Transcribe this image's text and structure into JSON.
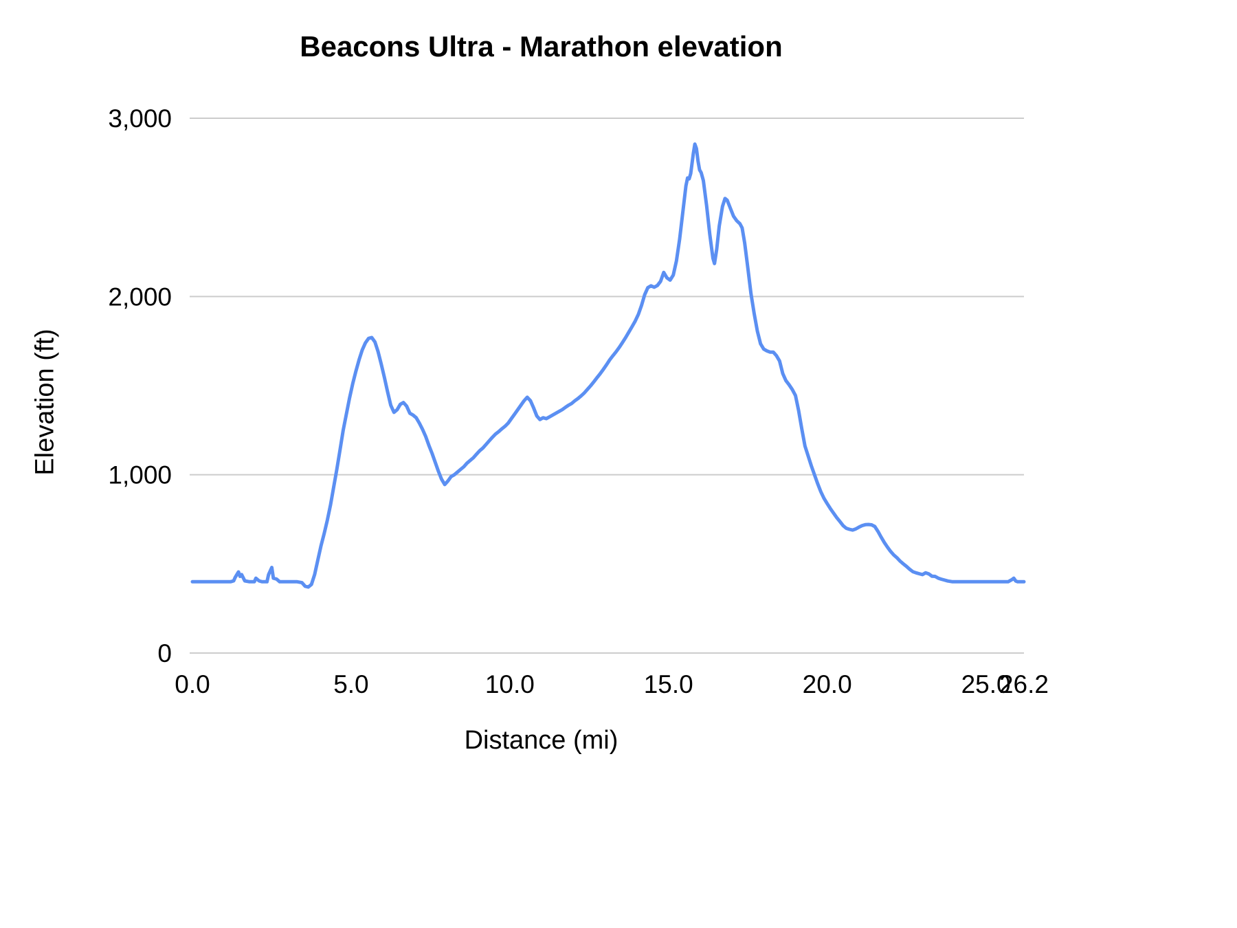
{
  "chart_data": {
    "type": "line",
    "title": "Beacons Ultra - Marathon elevation",
    "xlabel": "Distance (mi)",
    "ylabel": "Elevation (ft)",
    "xlim": [
      0,
      26.2
    ],
    "ylim": [
      0,
      3000
    ],
    "x_ticks": [
      0,
      5,
      10,
      15,
      20,
      25,
      26.2
    ],
    "x_tick_labels": [
      "0.0",
      "5.0",
      "10.0",
      "15.0",
      "20.0",
      "25.0",
      "26.2"
    ],
    "y_ticks": [
      0,
      1000,
      2000,
      3000
    ],
    "y_tick_labels": [
      "0",
      "1,000",
      "2,000",
      "3,000"
    ],
    "grid": "horizontal",
    "legend": "none",
    "line_color": "#5b8ff2",
    "grid_color": "#cccccc",
    "background_color": "#ffffff",
    "points": [
      [
        0.0,
        400
      ],
      [
        0.3,
        400
      ],
      [
        0.6,
        400
      ],
      [
        0.9,
        400
      ],
      [
        1.2,
        400
      ],
      [
        1.3,
        405
      ],
      [
        1.35,
        425
      ],
      [
        1.45,
        455
      ],
      [
        1.5,
        430
      ],
      [
        1.55,
        440
      ],
      [
        1.65,
        405
      ],
      [
        1.8,
        400
      ],
      [
        1.95,
        400
      ],
      [
        2.0,
        420
      ],
      [
        2.1,
        405
      ],
      [
        2.2,
        400
      ],
      [
        2.35,
        400
      ],
      [
        2.4,
        440
      ],
      [
        2.5,
        480
      ],
      [
        2.55,
        420
      ],
      [
        2.65,
        415
      ],
      [
        2.75,
        400
      ],
      [
        3.0,
        400
      ],
      [
        3.3,
        400
      ],
      [
        3.45,
        395
      ],
      [
        3.55,
        375
      ],
      [
        3.65,
        370
      ],
      [
        3.75,
        385
      ],
      [
        3.85,
        440
      ],
      [
        3.95,
        520
      ],
      [
        4.05,
        600
      ],
      [
        4.15,
        670
      ],
      [
        4.25,
        745
      ],
      [
        4.35,
        830
      ],
      [
        4.45,
        930
      ],
      [
        4.55,
        1030
      ],
      [
        4.65,
        1140
      ],
      [
        4.75,
        1250
      ],
      [
        4.85,
        1340
      ],
      [
        4.95,
        1430
      ],
      [
        5.05,
        1510
      ],
      [
        5.15,
        1580
      ],
      [
        5.25,
        1645
      ],
      [
        5.35,
        1700
      ],
      [
        5.45,
        1740
      ],
      [
        5.55,
        1765
      ],
      [
        5.65,
        1770
      ],
      [
        5.75,
        1745
      ],
      [
        5.85,
        1690
      ],
      [
        5.95,
        1620
      ],
      [
        6.05,
        1545
      ],
      [
        6.15,
        1465
      ],
      [
        6.25,
        1390
      ],
      [
        6.35,
        1350
      ],
      [
        6.45,
        1365
      ],
      [
        6.55,
        1395
      ],
      [
        6.65,
        1405
      ],
      [
        6.75,
        1385
      ],
      [
        6.85,
        1345
      ],
      [
        6.95,
        1335
      ],
      [
        7.05,
        1320
      ],
      [
        7.15,
        1290
      ],
      [
        7.25,
        1255
      ],
      [
        7.35,
        1215
      ],
      [
        7.45,
        1165
      ],
      [
        7.55,
        1120
      ],
      [
        7.65,
        1070
      ],
      [
        7.75,
        1020
      ],
      [
        7.85,
        975
      ],
      [
        7.95,
        945
      ],
      [
        8.05,
        965
      ],
      [
        8.15,
        990
      ],
      [
        8.25,
        1000
      ],
      [
        8.35,
        1015
      ],
      [
        8.45,
        1030
      ],
      [
        8.55,
        1045
      ],
      [
        8.65,
        1065
      ],
      [
        8.75,
        1080
      ],
      [
        8.85,
        1095
      ],
      [
        8.95,
        1115
      ],
      [
        9.05,
        1135
      ],
      [
        9.15,
        1150
      ],
      [
        9.25,
        1170
      ],
      [
        9.35,
        1190
      ],
      [
        9.45,
        1210
      ],
      [
        9.55,
        1228
      ],
      [
        9.65,
        1242
      ],
      [
        9.75,
        1258
      ],
      [
        9.85,
        1272
      ],
      [
        9.95,
        1290
      ],
      [
        10.05,
        1315
      ],
      [
        10.15,
        1340
      ],
      [
        10.25,
        1365
      ],
      [
        10.35,
        1390
      ],
      [
        10.45,
        1415
      ],
      [
        10.55,
        1435
      ],
      [
        10.65,
        1415
      ],
      [
        10.75,
        1375
      ],
      [
        10.85,
        1330
      ],
      [
        10.95,
        1310
      ],
      [
        11.05,
        1320
      ],
      [
        11.15,
        1315
      ],
      [
        11.25,
        1325
      ],
      [
        11.35,
        1335
      ],
      [
        11.45,
        1345
      ],
      [
        11.55,
        1355
      ],
      [
        11.65,
        1365
      ],
      [
        11.75,
        1378
      ],
      [
        11.85,
        1390
      ],
      [
        11.95,
        1400
      ],
      [
        12.05,
        1415
      ],
      [
        12.15,
        1428
      ],
      [
        12.25,
        1443
      ],
      [
        12.35,
        1460
      ],
      [
        12.45,
        1480
      ],
      [
        12.55,
        1500
      ],
      [
        12.65,
        1522
      ],
      [
        12.75,
        1545
      ],
      [
        12.85,
        1568
      ],
      [
        12.95,
        1592
      ],
      [
        13.05,
        1618
      ],
      [
        13.15,
        1645
      ],
      [
        13.25,
        1668
      ],
      [
        13.35,
        1690
      ],
      [
        13.45,
        1715
      ],
      [
        13.55,
        1742
      ],
      [
        13.65,
        1770
      ],
      [
        13.75,
        1800
      ],
      [
        13.85,
        1830
      ],
      [
        13.95,
        1862
      ],
      [
        14.05,
        1900
      ],
      [
        14.15,
        1950
      ],
      [
        14.25,
        2010
      ],
      [
        14.35,
        2050
      ],
      [
        14.45,
        2060
      ],
      [
        14.55,
        2052
      ],
      [
        14.65,
        2062
      ],
      [
        14.75,
        2085
      ],
      [
        14.85,
        2135
      ],
      [
        14.95,
        2105
      ],
      [
        15.05,
        2092
      ],
      [
        15.15,
        2120
      ],
      [
        15.25,
        2200
      ],
      [
        15.35,
        2320
      ],
      [
        15.45,
        2470
      ],
      [
        15.55,
        2620
      ],
      [
        15.6,
        2665
      ],
      [
        15.65,
        2660
      ],
      [
        15.7,
        2690
      ],
      [
        15.78,
        2800
      ],
      [
        15.83,
        2855
      ],
      [
        15.88,
        2830
      ],
      [
        15.93,
        2760
      ],
      [
        15.98,
        2710
      ],
      [
        16.03,
        2695
      ],
      [
        16.1,
        2650
      ],
      [
        16.2,
        2510
      ],
      [
        16.3,
        2350
      ],
      [
        16.4,
        2215
      ],
      [
        16.45,
        2185
      ],
      [
        16.52,
        2265
      ],
      [
        16.6,
        2395
      ],
      [
        16.7,
        2505
      ],
      [
        16.78,
        2550
      ],
      [
        16.85,
        2540
      ],
      [
        16.95,
        2495
      ],
      [
        17.05,
        2450
      ],
      [
        17.15,
        2425
      ],
      [
        17.25,
        2408
      ],
      [
        17.32,
        2385
      ],
      [
        17.4,
        2300
      ],
      [
        17.5,
        2160
      ],
      [
        17.6,
        2015
      ],
      [
        17.7,
        1905
      ],
      [
        17.8,
        1805
      ],
      [
        17.9,
        1735
      ],
      [
        18.0,
        1705
      ],
      [
        18.1,
        1695
      ],
      [
        18.2,
        1688
      ],
      [
        18.3,
        1688
      ],
      [
        18.4,
        1668
      ],
      [
        18.5,
        1638
      ],
      [
        18.6,
        1568
      ],
      [
        18.7,
        1528
      ],
      [
        18.8,
        1505
      ],
      [
        18.9,
        1478
      ],
      [
        19.0,
        1445
      ],
      [
        19.1,
        1360
      ],
      [
        19.2,
        1258
      ],
      [
        19.3,
        1162
      ],
      [
        19.4,
        1105
      ],
      [
        19.5,
        1050
      ],
      [
        19.6,
        1000
      ],
      [
        19.7,
        950
      ],
      [
        19.8,
        905
      ],
      [
        19.9,
        868
      ],
      [
        20.0,
        838
      ],
      [
        20.1,
        810
      ],
      [
        20.2,
        785
      ],
      [
        20.3,
        760
      ],
      [
        20.4,
        738
      ],
      [
        20.5,
        715
      ],
      [
        20.6,
        700
      ],
      [
        20.7,
        694
      ],
      [
        20.8,
        690
      ],
      [
        20.9,
        696
      ],
      [
        21.0,
        706
      ],
      [
        21.1,
        715
      ],
      [
        21.2,
        720
      ],
      [
        21.3,
        721
      ],
      [
        21.4,
        719
      ],
      [
        21.5,
        710
      ],
      [
        21.6,
        682
      ],
      [
        21.7,
        650
      ],
      [
        21.8,
        620
      ],
      [
        21.9,
        594
      ],
      [
        22.0,
        570
      ],
      [
        22.1,
        550
      ],
      [
        22.2,
        534
      ],
      [
        22.3,
        515
      ],
      [
        22.4,
        500
      ],
      [
        22.5,
        486
      ],
      [
        22.6,
        470
      ],
      [
        22.7,
        456
      ],
      [
        22.8,
        450
      ],
      [
        22.9,
        445
      ],
      [
        23.0,
        440
      ],
      [
        23.1,
        450
      ],
      [
        23.2,
        444
      ],
      [
        23.3,
        431
      ],
      [
        23.4,
        430
      ],
      [
        23.5,
        420
      ],
      [
        23.6,
        414
      ],
      [
        23.7,
        409
      ],
      [
        23.8,
        404
      ],
      [
        23.95,
        400
      ],
      [
        24.2,
        400
      ],
      [
        24.5,
        400
      ],
      [
        24.8,
        400
      ],
      [
        25.1,
        400
      ],
      [
        25.4,
        400
      ],
      [
        25.7,
        400
      ],
      [
        25.82,
        412
      ],
      [
        25.88,
        420
      ],
      [
        25.94,
        404
      ],
      [
        26.0,
        400
      ],
      [
        26.1,
        400
      ],
      [
        26.2,
        400
      ]
    ]
  }
}
